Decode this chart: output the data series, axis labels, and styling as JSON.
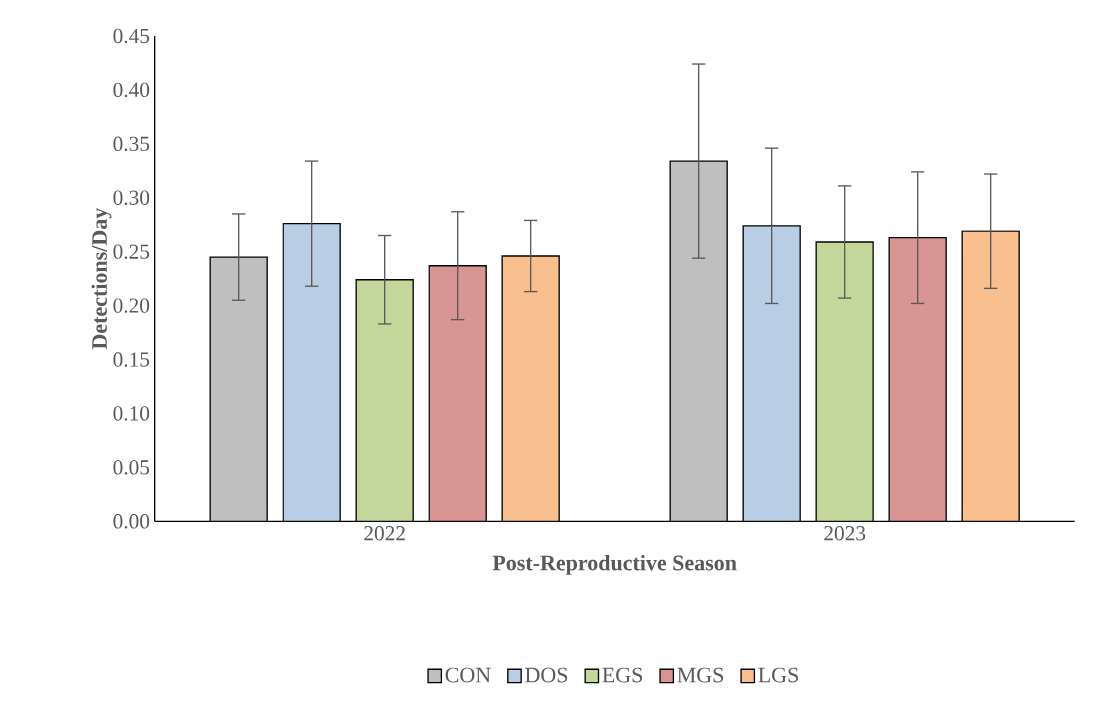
{
  "chart_data": {
    "type": "bar",
    "xlabel": "Post-Reproductive Season",
    "ylabel": "Detections/Day",
    "categories": [
      "2022",
      "2023"
    ],
    "series": [
      {
        "name": "CON",
        "color": "#bfbfbf",
        "values": [
          0.245,
          0.334
        ],
        "errors": [
          0.04,
          0.09
        ]
      },
      {
        "name": "DOS",
        "color": "#b9cde5",
        "values": [
          0.276,
          0.274
        ],
        "errors": [
          0.058,
          0.072
        ]
      },
      {
        "name": "EGS",
        "color": "#c4d79b",
        "values": [
          0.224,
          0.259
        ],
        "errors": [
          0.041,
          0.052
        ]
      },
      {
        "name": "MGS",
        "color": "#d99594",
        "values": [
          0.237,
          0.263
        ],
        "errors": [
          0.05,
          0.061
        ]
      },
      {
        "name": "LGS",
        "color": "#f9bf8f",
        "values": [
          0.246,
          0.269
        ],
        "errors": [
          0.033,
          0.053
        ]
      }
    ],
    "ylim": [
      0,
      0.45
    ],
    "yticks": [
      {
        "value": 0,
        "label": "0.00"
      },
      {
        "value": 0.05,
        "label": "0.05"
      },
      {
        "value": 0.1,
        "label": "0.10"
      },
      {
        "value": 0.15,
        "label": "0.15"
      },
      {
        "value": 0.2,
        "label": "0.20"
      },
      {
        "value": 0.25,
        "label": "0.25"
      },
      {
        "value": 0.3,
        "label": "0.30"
      },
      {
        "value": 0.35,
        "label": "0.35"
      },
      {
        "value": 0.4,
        "label": "0.40"
      },
      {
        "value": 0.45,
        "label": "0.45"
      }
    ],
    "grid": false,
    "legend": "bottom"
  }
}
